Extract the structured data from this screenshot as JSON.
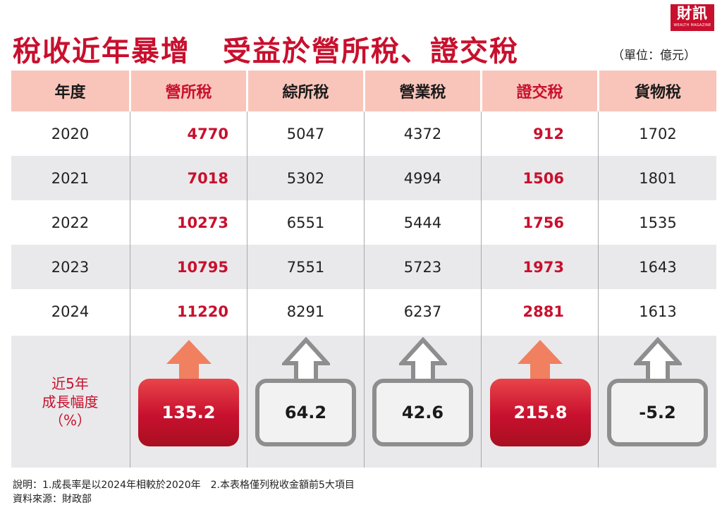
{
  "header": {
    "title_part1": "稅收近年暴增",
    "title_part2": "受益於營所稅、證交稅",
    "unit": "（單位：億元）",
    "logo_text": "財訊",
    "logo_subtext": "WEALTH MAGAZINE"
  },
  "table": {
    "columns": [
      "年度",
      "營所稅",
      "綜所稅",
      "營業稅",
      "證交稅",
      "貨物稅"
    ],
    "rows": [
      {
        "year": "2020",
        "values": [
          "4770",
          "5047",
          "4372",
          "912",
          "1702"
        ]
      },
      {
        "year": "2021",
        "values": [
          "7018",
          "5302",
          "4994",
          "1506",
          "1801"
        ]
      },
      {
        "year": "2022",
        "values": [
          "10273",
          "6551",
          "5444",
          "1756",
          "1535"
        ]
      },
      {
        "year": "2023",
        "values": [
          "10795",
          "7551",
          "5723",
          "1973",
          "1643"
        ]
      },
      {
        "year": "2024",
        "values": [
          "11220",
          "8291",
          "6237",
          "2881",
          "1613"
        ]
      }
    ],
    "growth": {
      "label_line1": "近5年",
      "label_line2": "成長幅度",
      "label_line3": "（%）",
      "values": [
        "135.2",
        "64.2",
        "42.6",
        "215.8",
        "-5.2"
      ]
    }
  },
  "notes": {
    "line1": "說明：1.成長率是以2024年相較於2020年　2.本表格僅列稅收金額前5大項目",
    "line2": "資料來源：財政部"
  },
  "colors": {
    "accent_red": "#c8102e",
    "header_pink": "#f9c5ba",
    "row_grey": "#e9e9eb",
    "arrow_orange": "#f08060",
    "box_grey": "#8e8e8e"
  }
}
